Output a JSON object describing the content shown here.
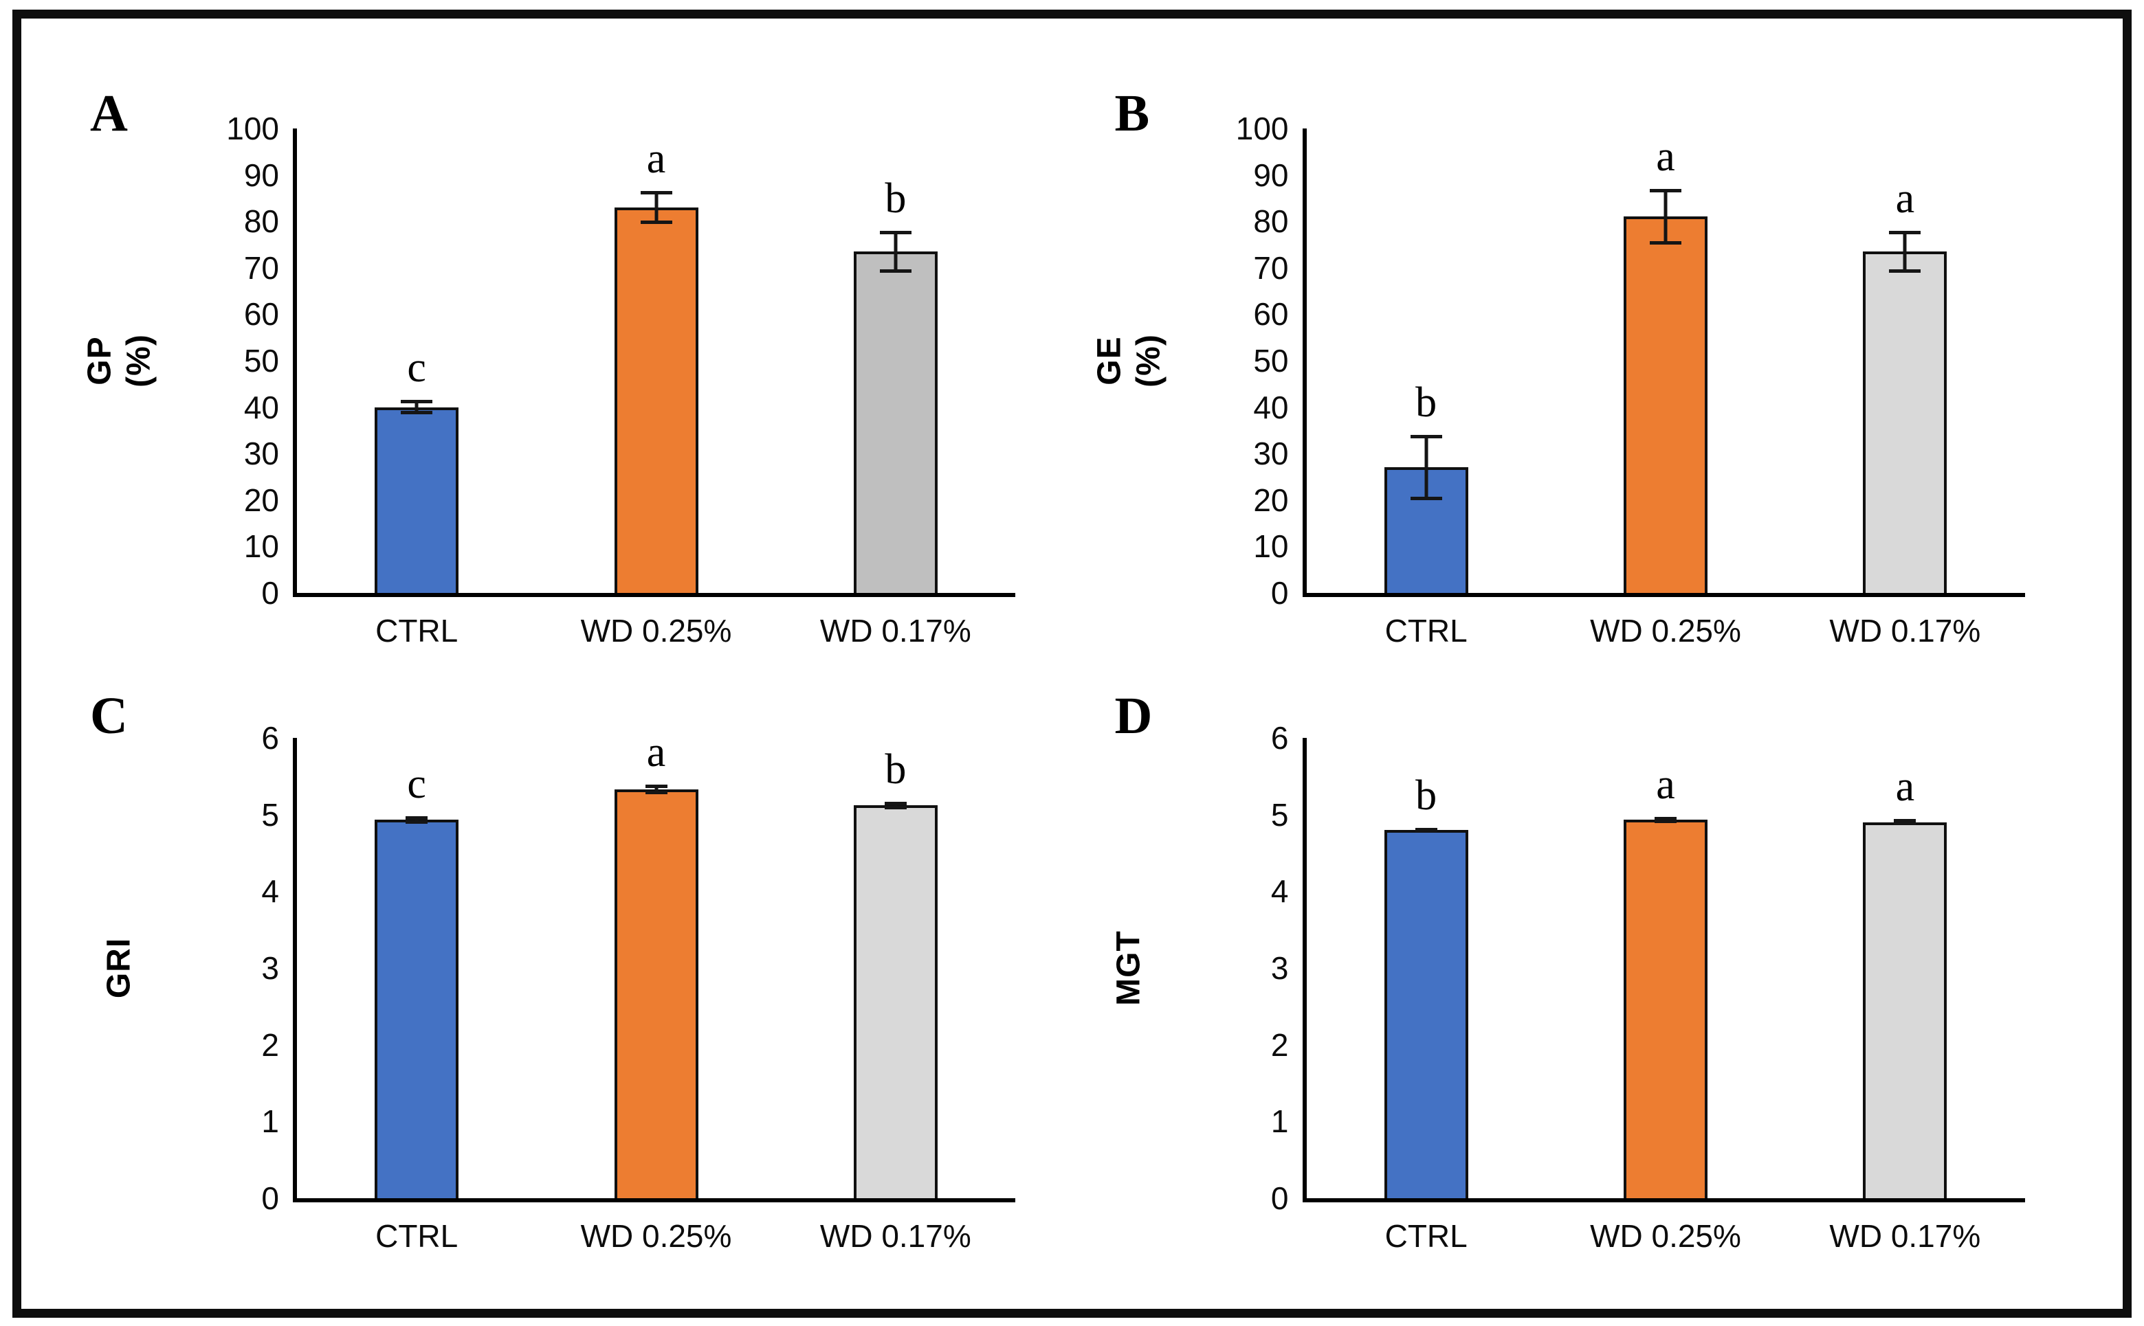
{
  "figure": {
    "background": "#ffffff",
    "border_color": "#0e0e0e",
    "bar_outline_color": "#101010",
    "error_bar_color": "#151515",
    "accent_colors": {
      "blue": "#4472C4",
      "orange": "#ED7D31",
      "gray_dark": "#BFBFBF",
      "gray_light": "#D9D9D9"
    }
  },
  "chart_data": [
    {
      "type": "bar",
      "panel_label": "A",
      "ylabel": "GP\n(%)",
      "ylim": [
        0,
        100
      ],
      "ytick_step": 10,
      "grid": false,
      "legend": "none",
      "categories": [
        "CTRL",
        "WD 0.25%",
        "WD 0.17%"
      ],
      "series": [
        {
          "name": "GP (%)",
          "values": [
            40,
            83,
            73.5
          ]
        }
      ],
      "errors": [
        1.5,
        3.5,
        4.5
      ],
      "sig_letters": [
        "c",
        "a",
        "b"
      ],
      "bar_colors": [
        "#4472C4",
        "#ED7D31",
        "#BFBFBF"
      ],
      "err_cap_width": 46
    },
    {
      "type": "bar",
      "panel_label": "B",
      "ylabel": "GE\n(%)",
      "ylim": [
        0,
        100
      ],
      "ytick_step": 10,
      "grid": false,
      "legend": "none",
      "categories": [
        "CTRL",
        "WD 0.25%",
        "WD 0.17%"
      ],
      "series": [
        {
          "name": "GE (%)",
          "values": [
            27,
            81,
            73.5
          ]
        }
      ],
      "errors": [
        7,
        6,
        4.5
      ],
      "sig_letters": [
        "b",
        "a",
        "a"
      ],
      "bar_colors": [
        "#4472C4",
        "#ED7D31",
        "#D9D9D9"
      ],
      "err_cap_width": 46
    },
    {
      "type": "bar",
      "panel_label": "C",
      "ylabel": "GRI",
      "ylim": [
        0,
        6
      ],
      "ytick_step": 1,
      "grid": false,
      "legend": "none",
      "categories": [
        "CTRL",
        "WD 0.25%",
        "WD 0.17%"
      ],
      "series": [
        {
          "name": "GRI",
          "values": [
            4.93,
            5.33,
            5.12
          ]
        }
      ],
      "errors": [
        0.05,
        0.06,
        0.05
      ],
      "sig_letters": [
        "c",
        "a",
        "b"
      ],
      "bar_colors": [
        "#4472C4",
        "#ED7D31",
        "#D9D9D9"
      ],
      "err_cap_width": 32
    },
    {
      "type": "bar",
      "panel_label": "D",
      "ylabel": "MGT",
      "ylim": [
        0,
        6
      ],
      "ytick_step": 1,
      "grid": false,
      "legend": "none",
      "categories": [
        "CTRL",
        "WD 0.25%",
        "WD 0.17%"
      ],
      "series": [
        {
          "name": "MGT",
          "values": [
            4.8,
            4.93,
            4.9
          ]
        }
      ],
      "errors": [
        0.03,
        0.04,
        0.04
      ],
      "sig_letters": [
        "b",
        "a",
        "a"
      ],
      "bar_colors": [
        "#4472C4",
        "#ED7D31",
        "#D9D9D9"
      ],
      "err_cap_width": 32
    }
  ]
}
